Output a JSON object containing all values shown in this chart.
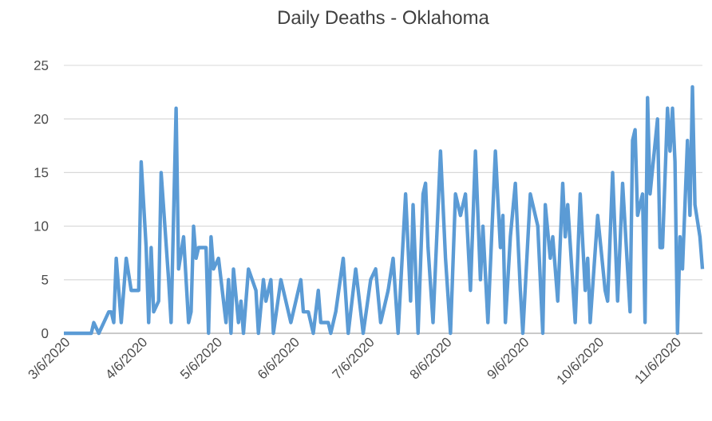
{
  "chart_data": {
    "type": "line",
    "title": "Daily Deaths - Oklahoma",
    "x": [
      "2020-03-06",
      "2020-03-17",
      "2020-03-18",
      "2020-03-20",
      "2020-03-22",
      "2020-03-24",
      "2020-03-25",
      "2020-03-26",
      "2020-03-27",
      "2020-03-29",
      "2020-03-31",
      "2020-04-02",
      "2020-04-05",
      "2020-04-06",
      "2020-04-08",
      "2020-04-09",
      "2020-04-10",
      "2020-04-11",
      "2020-04-13",
      "2020-04-14",
      "2020-04-17",
      "2020-04-18",
      "2020-04-20",
      "2020-04-21",
      "2020-04-23",
      "2020-04-25",
      "2020-04-26",
      "2020-04-27",
      "2020-04-28",
      "2020-04-29",
      "2020-05-02",
      "2020-05-03",
      "2020-05-04",
      "2020-05-05",
      "2020-05-07",
      "2020-05-08",
      "2020-05-10",
      "2020-05-11",
      "2020-05-12",
      "2020-05-13",
      "2020-05-15",
      "2020-05-16",
      "2020-05-17",
      "2020-05-19",
      "2020-05-22",
      "2020-05-23",
      "2020-05-25",
      "2020-05-26",
      "2020-05-28",
      "2020-05-29",
      "2020-06-01",
      "2020-06-03",
      "2020-06-05",
      "2020-06-09",
      "2020-06-10",
      "2020-06-12",
      "2020-06-14",
      "2020-06-16",
      "2020-06-17",
      "2020-06-20",
      "2020-06-21",
      "2020-06-23",
      "2020-06-26",
      "2020-06-28",
      "2020-07-01",
      "2020-07-04",
      "2020-07-07",
      "2020-07-09",
      "2020-07-11",
      "2020-07-14",
      "2020-07-16",
      "2020-07-18",
      "2020-07-21",
      "2020-07-23",
      "2020-07-24",
      "2020-07-26",
      "2020-07-28",
      "2020-07-29",
      "2020-07-30",
      "2020-08-01",
      "2020-08-04",
      "2020-08-06",
      "2020-08-08",
      "2020-08-10",
      "2020-08-12",
      "2020-08-14",
      "2020-08-16",
      "2020-08-18",
      "2020-08-20",
      "2020-08-21",
      "2020-08-23",
      "2020-08-26",
      "2020-08-28",
      "2020-08-29",
      "2020-08-30",
      "2020-09-01",
      "2020-09-03",
      "2020-09-05",
      "2020-09-06",
      "2020-09-09",
      "2020-09-12",
      "2020-09-14",
      "2020-09-15",
      "2020-09-17",
      "2020-09-18",
      "2020-09-20",
      "2020-09-22",
      "2020-09-23",
      "2020-09-24",
      "2020-09-27",
      "2020-09-29",
      "2020-10-01",
      "2020-10-02",
      "2020-10-03",
      "2020-10-06",
      "2020-10-09",
      "2020-10-10",
      "2020-10-12",
      "2020-10-14",
      "2020-10-16",
      "2020-10-19",
      "2020-10-20",
      "2020-10-21",
      "2020-10-22",
      "2020-10-24",
      "2020-10-25",
      "2020-10-26",
      "2020-10-27",
      "2020-10-30",
      "2020-10-31",
      "2020-11-01",
      "2020-11-03",
      "2020-11-04",
      "2020-11-05",
      "2020-11-06",
      "2020-11-07",
      "2020-11-08",
      "2020-11-09",
      "2020-11-11",
      "2020-11-12",
      "2020-11-13",
      "2020-11-14",
      "2020-11-16",
      "2020-11-17"
    ],
    "series": [
      {
        "color": "#5b9bd5",
        "values": [
          0,
          0,
          1,
          0,
          1,
          2,
          2,
          1,
          7,
          1,
          7,
          4,
          4,
          16,
          8,
          1,
          8,
          2,
          3,
          15,
          5,
          1,
          21,
          6,
          9,
          1,
          2,
          10,
          7,
          8,
          8,
          0,
          9,
          6,
          7,
          5,
          1,
          5,
          0,
          6,
          1,
          3,
          0,
          6,
          4,
          0,
          5,
          3,
          5,
          0,
          5,
          3,
          1,
          5,
          2,
          2,
          0,
          4,
          1,
          1,
          0,
          2,
          7,
          0,
          6,
          0,
          5,
          6,
          1,
          4,
          7,
          0,
          13,
          3,
          12,
          0,
          13,
          14,
          8,
          1,
          17,
          7,
          0,
          13,
          11,
          13,
          4,
          17,
          5,
          10,
          1,
          17,
          8,
          11,
          1,
          9,
          14,
          4,
          0,
          13,
          10,
          0,
          12,
          7,
          9,
          3,
          14,
          9,
          12,
          1,
          13,
          4,
          7,
          1,
          11,
          4,
          3,
          15,
          3,
          14,
          2,
          18,
          19,
          11,
          13,
          1,
          22,
          13,
          20,
          8,
          8,
          21,
          17,
          21,
          16,
          0,
          9,
          6,
          18,
          11,
          23,
          12,
          9,
          6
        ]
      }
    ],
    "xlim": [
      "2020-03-06",
      "2020-11-17"
    ],
    "xticks": [
      {
        "value": "2020-03-06",
        "label": "3/6/2020"
      },
      {
        "value": "2020-04-06",
        "label": "4/6/2020"
      },
      {
        "value": "2020-05-06",
        "label": "5/6/2020"
      },
      {
        "value": "2020-06-06",
        "label": "6/6/2020"
      },
      {
        "value": "2020-07-06",
        "label": "7/6/2020"
      },
      {
        "value": "2020-08-06",
        "label": "8/6/2020"
      },
      {
        "value": "2020-09-06",
        "label": "9/6/2020"
      },
      {
        "value": "2020-10-06",
        "label": "10/6/2020"
      },
      {
        "value": "2020-11-06",
        "label": "11/6/2020"
      }
    ],
    "ylim": [
      0,
      25
    ],
    "yticks": [
      0,
      5,
      10,
      15,
      20,
      25
    ],
    "grid": "y",
    "line_style": "solid"
  }
}
